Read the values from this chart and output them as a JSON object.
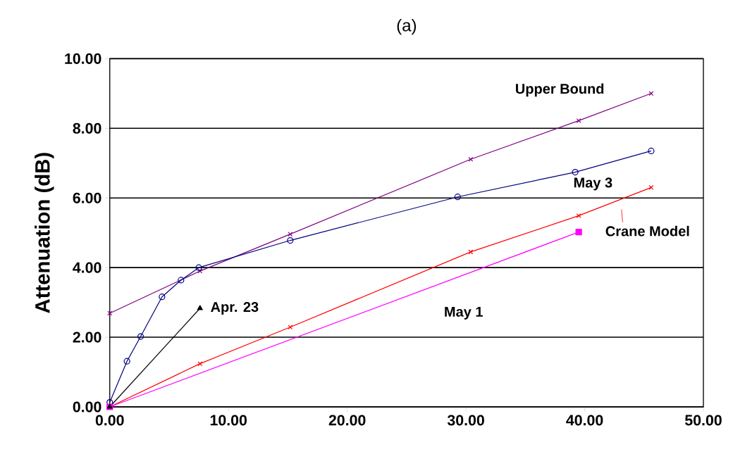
{
  "chart_data": {
    "type": "line",
    "title": "(a)",
    "ylabel": "Attenuation (dB)",
    "xlim": [
      0,
      50
    ],
    "ylim": [
      0,
      10
    ],
    "xticks": [
      {
        "value": 0,
        "label": "0.00"
      },
      {
        "value": 10,
        "label": "10.00"
      },
      {
        "value": 20,
        "label": "20.00"
      },
      {
        "value": 30,
        "label": "30.00"
      },
      {
        "value": 40,
        "label": "40.00"
      },
      {
        "value": 50,
        "label": "50.00"
      }
    ],
    "yticks": [
      {
        "value": 0,
        "label": "0.00"
      },
      {
        "value": 2,
        "label": "2.00"
      },
      {
        "value": 4,
        "label": "4.00"
      },
      {
        "value": 6,
        "label": "6.00"
      },
      {
        "value": 8,
        "label": "8.00"
      },
      {
        "value": 10,
        "label": "10.00"
      }
    ],
    "grid": "y",
    "line_style": "solid",
    "series": [
      {
        "name": "Upper Bound",
        "color": "#800080",
        "marker": "cross",
        "x": [
          0,
          7.6,
          15.2,
          30.4,
          39.5,
          45.6
        ],
        "values": [
          2.69,
          3.9,
          4.96,
          7.11,
          8.22,
          9.0
        ]
      },
      {
        "name": "May 3",
        "color": "#000080",
        "marker": "circle",
        "x": [
          0,
          1.45,
          2.6,
          4.4,
          6.0,
          7.5,
          15.2,
          29.3,
          39.2,
          45.6
        ],
        "values": [
          0.13,
          1.31,
          2.02,
          3.16,
          3.64,
          4.0,
          4.78,
          6.03,
          6.74,
          7.35
        ]
      },
      {
        "name": "Crane Model",
        "color": "#ff0000",
        "marker": "cross",
        "x": [
          0,
          7.6,
          15.2,
          30.4,
          39.5,
          45.6
        ],
        "values": [
          0,
          1.24,
          2.29,
          4.45,
          5.49,
          6.3
        ]
      },
      {
        "name": "May 1",
        "color": "#ff00ff",
        "marker": "square",
        "x": [
          0,
          39.5
        ],
        "values": [
          0,
          5.02
        ]
      },
      {
        "name": "Apr. 23",
        "color": "#000000",
        "marker": "triangle",
        "x": [
          0,
          7.6
        ],
        "values": [
          0,
          2.83
        ]
      }
    ]
  }
}
